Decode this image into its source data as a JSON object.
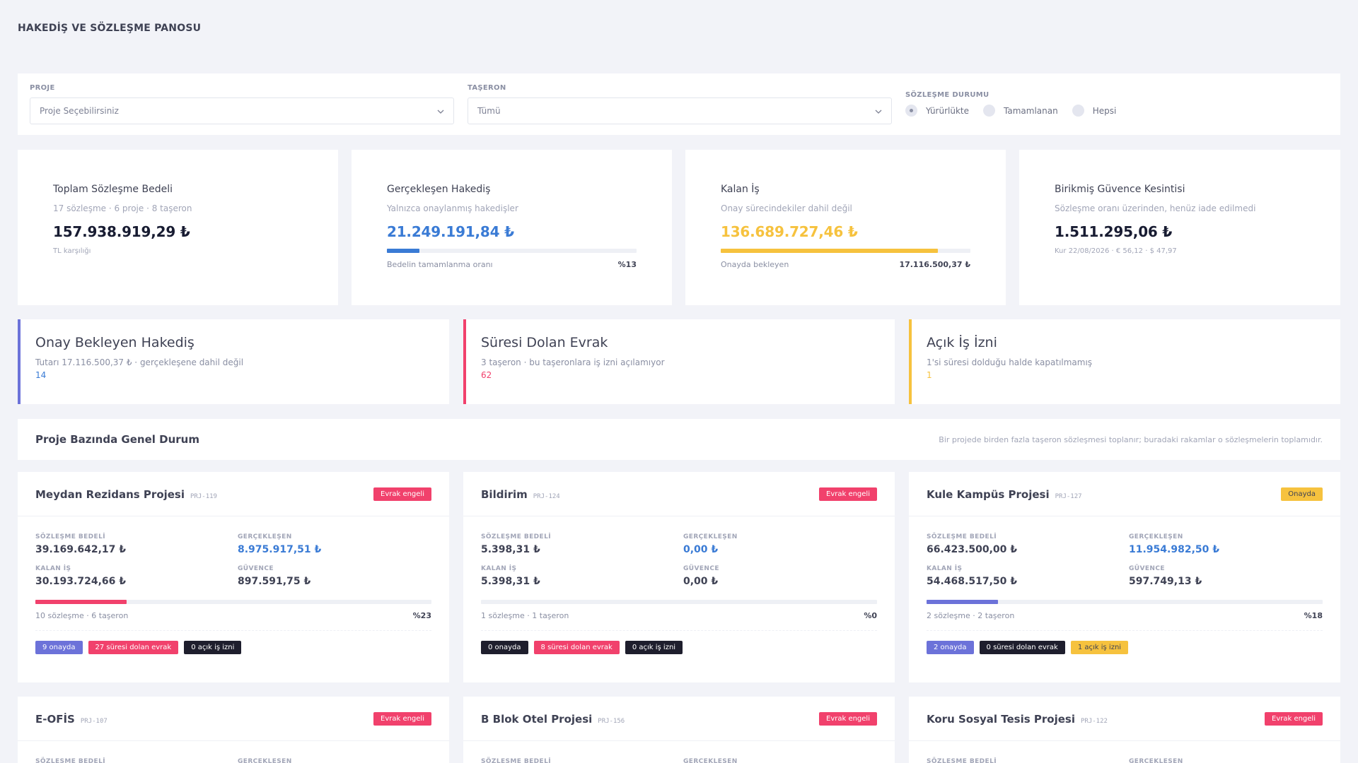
{
  "page_title": "HAKEDİŞ VE SÖZLEŞME PANOSU",
  "filters": {
    "project": {
      "label": "PROJE",
      "value": "Proje Seçebilirsiniz"
    },
    "subcontractor": {
      "label": "TAŞERON",
      "value": "Tümü"
    },
    "status": {
      "label": "SÖZLEŞME DURUMU",
      "options": [
        "Yürürlükte",
        "Tamamlanan",
        "Hepsi"
      ],
      "selected": "Yürürlükte"
    }
  },
  "kpis": {
    "total": {
      "title": "Toplam Sözleşme Bedeli",
      "sub": "17 sözleşme · 6 proje · 8 taşeron",
      "value": "157.938.919,29 ₺",
      "note": "TL karşılığı"
    },
    "realized": {
      "title": "Gerçekleşen Hakediş",
      "sub": "Yalnızca onaylanmış hakedişler",
      "value": "21.249.191,84 ₺",
      "bar_label": "Bedelin tamamlanma oranı",
      "bar_value": "%13",
      "progress": 0.13
    },
    "remaining": {
      "title": "Kalan İş",
      "sub": "Onay sürecindekiler dahil değil",
      "value": "136.689.727,46 ₺",
      "bar_label": "Onayda bekleyen",
      "bar_value": "17.116.500,37 ₺",
      "progress": 0.87
    },
    "retention": {
      "title": "Birikmiş Güvence Kesintisi",
      "sub": "Sözleşme oranı üzerinden, henüz iade edilmedi",
      "value": "1.511.295,06 ₺",
      "note": "Kur 22/08/2026 · € 56,12 · $ 47,97"
    }
  },
  "alerts": {
    "pending": {
      "title": "Onay Bekleyen Hakediş",
      "sub": "Tutarı 17.116.500,37 ₺ · gerçekleşene dahil değil",
      "count": "14"
    },
    "expired": {
      "title": "Süresi Dolan Evrak",
      "sub": "3 taşeron · bu taşeronlara iş izni açılamıyor",
      "count": "62"
    },
    "open_permit": {
      "title": "Açık İş İzni",
      "sub": "1'si süresi dolduğu halde kapatılmamış",
      "count": "1"
    }
  },
  "section": {
    "title": "Proje Bazında Genel Durum",
    "note": "Bir projede birden fazla taşeron sözleşmesi toplanır; buradaki rakamlar o sözleşmelerin toplamıdır."
  },
  "labels": {
    "contract": "SÖZLEŞME BEDELİ",
    "realized": "GERÇEKLEŞEN",
    "remaining": "KALAN İŞ",
    "retention": "GÜVENCE"
  },
  "colors": {
    "blue": "#3a7bd5",
    "pink": "#f1416c",
    "yellow": "#f6c23e",
    "indigo": "#6c72d9",
    "dark": "#1e1e2d"
  },
  "projects": [
    {
      "name": "Meydan Rezidans Projesi",
      "code": "PRJ-119",
      "badge": "Evrak engeli",
      "contract": "39.169.642,17 ₺",
      "realized": "8.975.917,51 ₺",
      "remaining": "30.193.724,66 ₺",
      "retention": "897.591,75 ₺",
      "summary": "10 sözleşme · 6 taşeron",
      "pct": "%23",
      "progress": 0.23,
      "chips": [
        "9 onayda",
        "27 süresi dolan evrak",
        "0 açık iş izni"
      ]
    },
    {
      "name": "Bildirim",
      "code": "PRJ-124",
      "badge": "Evrak engeli",
      "contract": "5.398,31 ₺",
      "realized": "0,00 ₺",
      "remaining": "5.398,31 ₺",
      "retention": "0,00 ₺",
      "summary": "1 sözleşme · 1 taşeron",
      "pct": "%0",
      "progress": 0,
      "chips": [
        "0 onayda",
        "8 süresi dolan evrak",
        "0 açık iş izni"
      ]
    },
    {
      "name": "Kule Kampüs Projesi",
      "code": "PRJ-127",
      "badge": "Onayda",
      "contract": "66.423.500,00 ₺",
      "realized": "11.954.982,50 ₺",
      "remaining": "54.468.517,50 ₺",
      "retention": "597.749,13 ₺",
      "summary": "2 sözleşme · 2 taşeron",
      "pct": "%18",
      "progress": 0.18,
      "chips": [
        "2 onayda",
        "0 süresi dolan evrak",
        "1 açık iş izni"
      ]
    },
    {
      "name": "E-OFİS",
      "code": "PRJ-107",
      "badge": "Evrak engeli"
    },
    {
      "name": "B Blok Otel Projesi",
      "code": "PRJ-156",
      "badge": "Evrak engeli"
    },
    {
      "name": "Koru Sosyal Tesis Projesi",
      "code": "PRJ-122",
      "badge": "Evrak engeli"
    }
  ]
}
